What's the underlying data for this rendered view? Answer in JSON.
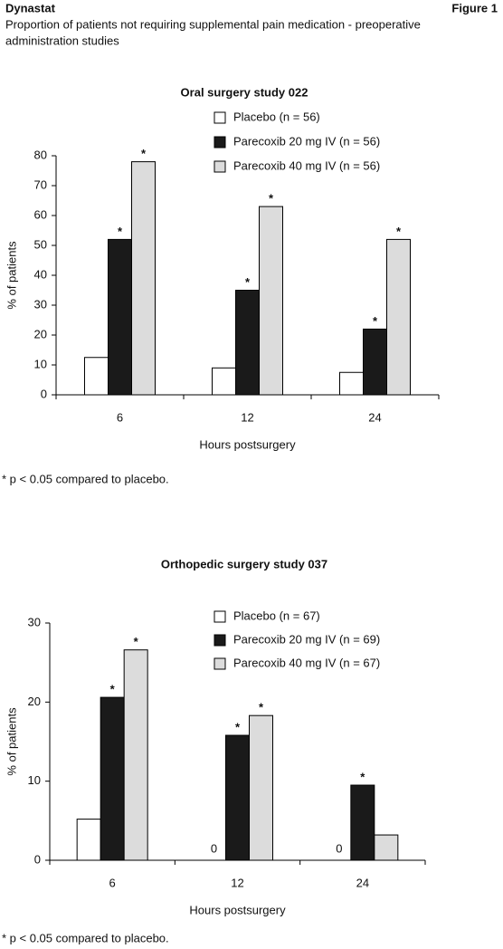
{
  "header": {
    "product": "Dynastat",
    "figure": "Figure 1",
    "description": [
      "Proportion of patients not requiring supplemental pain medication -  preoperative",
      "administration studies"
    ]
  },
  "chart_data": [
    {
      "type": "bar",
      "title": "Oral surgery study 022",
      "x_label": "Hours postsurgery",
      "y_label": "% of patients",
      "categories": [
        "6",
        "12",
        "24"
      ],
      "ylim": [
        0,
        80
      ],
      "yticks": [
        0,
        10,
        20,
        30,
        40,
        50,
        60,
        70,
        80
      ],
      "series": [
        {
          "name": "Placebo (n = 56)",
          "color": "#ffffff",
          "values": [
            12.5,
            9,
            7.5
          ]
        },
        {
          "name": "Parecoxib 20 mg IV (n = 56)",
          "color": "#1a1a1a",
          "values": [
            52,
            35,
            22
          ],
          "markers": [
            "*",
            "*",
            "*"
          ]
        },
        {
          "name": "Parecoxib 40 mg IV (n = 56)",
          "color": "#dcdcdc",
          "values": [
            78,
            63,
            52
          ],
          "markers": [
            "*",
            "*",
            "*"
          ]
        }
      ],
      "zero_labels": true,
      "note": "* p < 0.05 compared to placebo."
    },
    {
      "type": "bar",
      "title": "Orthopedic surgery study 037",
      "x_label": "Hours postsurgery",
      "y_label": "% of patients",
      "categories": [
        "6",
        "12",
        "24"
      ],
      "ylim": [
        0,
        30
      ],
      "yticks": [
        0,
        10,
        20,
        30
      ],
      "series": [
        {
          "name": "Placebo (n = 67)",
          "color": "#ffffff",
          "values": [
            5.2,
            0,
            0
          ]
        },
        {
          "name": "Parecoxib 20 mg IV (n = 69)",
          "color": "#1a1a1a",
          "values": [
            20.6,
            15.8,
            9.5
          ],
          "markers": [
            "*",
            "*",
            "*"
          ]
        },
        {
          "name": "Parecoxib 40 mg IV (n = 67)",
          "color": "#dcdcdc",
          "values": [
            26.6,
            18.3,
            3.2
          ],
          "markers": [
            "*",
            "*"
          ]
        }
      ],
      "zero_labels": true,
      "note": "* p < 0.05 compared to placebo."
    }
  ]
}
